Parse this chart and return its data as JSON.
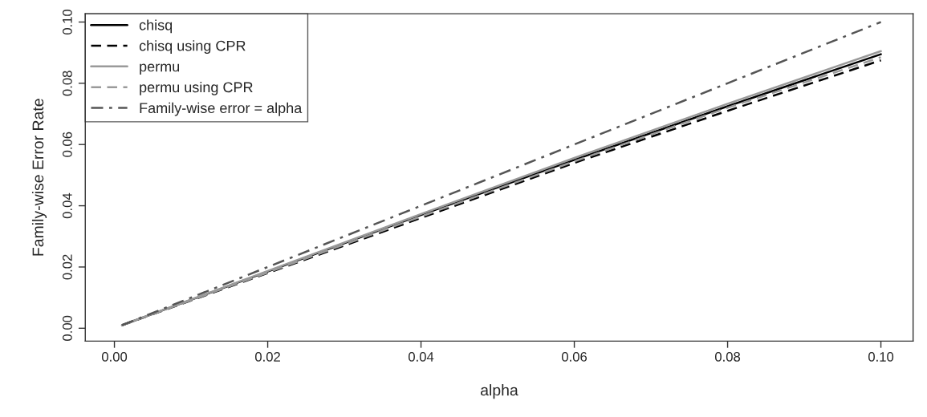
{
  "chart_data": {
    "type": "line",
    "xlabel": "alpha",
    "ylabel": "Family-wise Error Rate",
    "x": [
      0.001,
      0.02,
      0.04,
      0.06,
      0.08,
      0.1
    ],
    "series": [
      {
        "name": "chisq",
        "color": "#000000",
        "line_style": "solid",
        "values": [
          0.001,
          0.0185,
          0.037,
          0.055,
          0.0725,
          0.0895
        ]
      },
      {
        "name": "chisq using CPR",
        "color": "#000000",
        "line_style": "dashed",
        "values": [
          0.001,
          0.018,
          0.036,
          0.054,
          0.071,
          0.0875
        ]
      },
      {
        "name": "permu",
        "color": "#9a9a9a",
        "line_style": "solid",
        "values": [
          0.001,
          0.0187,
          0.0373,
          0.0556,
          0.0733,
          0.0905
        ]
      },
      {
        "name": "permu using CPR",
        "color": "#9a9a9a",
        "line_style": "dashed",
        "values": [
          0.001,
          0.0182,
          0.0365,
          0.0545,
          0.072,
          0.0885
        ]
      },
      {
        "name": "Family-wise error = alpha",
        "color": "#555555",
        "line_style": "dashdot",
        "values": [
          0.001,
          0.02,
          0.04,
          0.06,
          0.08,
          0.1
        ]
      }
    ],
    "xlim": [
      -0.0038,
      0.1042
    ],
    "ylim": [
      -0.0042,
      0.1027
    ],
    "xticks": [
      {
        "value": 0,
        "label": "0.00"
      },
      {
        "value": 0.02,
        "label": "0.02"
      },
      {
        "value": 0.04,
        "label": "0.04"
      },
      {
        "value": 0.06,
        "label": "0.06"
      },
      {
        "value": 0.08,
        "label": "0.08"
      },
      {
        "value": 0.1,
        "label": "0.10"
      }
    ],
    "yticks": [
      {
        "value": 0,
        "label": "0.00"
      },
      {
        "value": 0.02,
        "label": "0.02"
      },
      {
        "value": 0.04,
        "label": "0.04"
      },
      {
        "value": 0.06,
        "label": "0.06"
      },
      {
        "value": 0.08,
        "label": "0.08"
      },
      {
        "value": 0.1,
        "label": "0.10"
      }
    ],
    "grid": false,
    "legend": "top left",
    "marker": "none"
  }
}
